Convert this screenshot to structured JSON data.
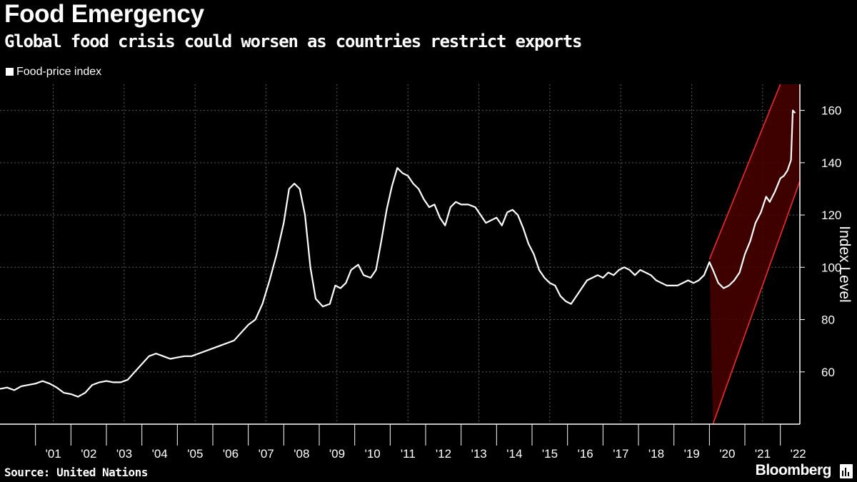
{
  "header": {
    "title": "Food Emergency",
    "subtitle": "Global food crisis could worsen as countries restrict exports"
  },
  "legend": {
    "label": "Food-price index",
    "color": "#ffffff"
  },
  "footer": {
    "source": "Source: United Nations",
    "brand": "Bloomberg"
  },
  "colors": {
    "background": "#000000",
    "line": "#ffffff",
    "grid": "#5a5a5a",
    "channel_line": "#ff2a2a",
    "channel_fill": "#4a0000"
  },
  "chart_data": {
    "type": "line",
    "title": "Food Emergency",
    "subtitle": "Global food crisis could worsen as countries restrict exports",
    "ylabel": "Index Level",
    "xlabel": "",
    "xlim": [
      2000.0,
      2022.55
    ],
    "ylim": [
      40,
      170
    ],
    "yticks": [
      60,
      80,
      100,
      120,
      140,
      160
    ],
    "ytick_labels": [
      "60",
      "80",
      "100",
      "120",
      "140",
      "160"
    ],
    "xtick_labels": [
      "'01",
      "'02",
      "'03",
      "'04",
      "'05",
      "'06",
      "'07",
      "'08",
      "'09",
      "'10",
      "'11",
      "'12",
      "'13",
      "'14",
      "'15",
      "'16",
      "'17",
      "'18",
      "'19",
      "'20",
      "'21",
      "'22"
    ],
    "xtick_positions": [
      2001,
      2002,
      2003,
      2004,
      2005,
      2006,
      2007,
      2008,
      2009,
      2010,
      2011,
      2012,
      2013,
      2014,
      2015,
      2016,
      2017,
      2018,
      2019,
      2020,
      2021,
      2022
    ],
    "grid": true,
    "legend_position": "top-left",
    "series": [
      {
        "name": "Food-price index",
        "points": [
          [
            2000.0,
            53.5
          ],
          [
            2000.2,
            54
          ],
          [
            2000.4,
            53
          ],
          [
            2000.6,
            54.5
          ],
          [
            2000.8,
            55
          ],
          [
            2001.0,
            55.5
          ],
          [
            2001.2,
            56.5
          ],
          [
            2001.4,
            55.5
          ],
          [
            2001.6,
            54
          ],
          [
            2001.8,
            52
          ],
          [
            2002.0,
            51.5
          ],
          [
            2002.2,
            50.5
          ],
          [
            2002.4,
            52
          ],
          [
            2002.6,
            55
          ],
          [
            2002.8,
            56
          ],
          [
            2003.0,
            56.5
          ],
          [
            2003.2,
            56
          ],
          [
            2003.4,
            56
          ],
          [
            2003.6,
            57
          ],
          [
            2003.8,
            60
          ],
          [
            2004.0,
            63
          ],
          [
            2004.2,
            66
          ],
          [
            2004.4,
            67
          ],
          [
            2004.6,
            66
          ],
          [
            2004.8,
            65
          ],
          [
            2005.0,
            65.5
          ],
          [
            2005.2,
            66
          ],
          [
            2005.4,
            66
          ],
          [
            2005.6,
            67
          ],
          [
            2005.8,
            68
          ],
          [
            2006.0,
            69
          ],
          [
            2006.2,
            70
          ],
          [
            2006.4,
            71
          ],
          [
            2006.6,
            72
          ],
          [
            2006.8,
            75
          ],
          [
            2007.0,
            78
          ],
          [
            2007.2,
            80
          ],
          [
            2007.4,
            86
          ],
          [
            2007.6,
            95
          ],
          [
            2007.8,
            105
          ],
          [
            2008.0,
            117
          ],
          [
            2008.15,
            130
          ],
          [
            2008.3,
            132
          ],
          [
            2008.45,
            130
          ],
          [
            2008.6,
            120
          ],
          [
            2008.75,
            100
          ],
          [
            2008.9,
            88
          ],
          [
            2009.1,
            85
          ],
          [
            2009.3,
            86
          ],
          [
            2009.45,
            93
          ],
          [
            2009.6,
            92
          ],
          [
            2009.75,
            94
          ],
          [
            2009.9,
            99
          ],
          [
            2010.1,
            101
          ],
          [
            2010.25,
            97
          ],
          [
            2010.45,
            96
          ],
          [
            2010.6,
            99
          ],
          [
            2010.75,
            110
          ],
          [
            2010.9,
            122
          ],
          [
            2011.05,
            131
          ],
          [
            2011.2,
            138
          ],
          [
            2011.35,
            136
          ],
          [
            2011.5,
            135
          ],
          [
            2011.65,
            132
          ],
          [
            2011.8,
            130
          ],
          [
            2011.95,
            126
          ],
          [
            2012.1,
            123
          ],
          [
            2012.25,
            124
          ],
          [
            2012.4,
            119
          ],
          [
            2012.55,
            116
          ],
          [
            2012.7,
            123
          ],
          [
            2012.85,
            125
          ],
          [
            2013.0,
            124
          ],
          [
            2013.2,
            124
          ],
          [
            2013.4,
            123
          ],
          [
            2013.55,
            120
          ],
          [
            2013.7,
            117
          ],
          [
            2013.85,
            118
          ],
          [
            2014.0,
            119
          ],
          [
            2014.15,
            116
          ],
          [
            2014.3,
            121
          ],
          [
            2014.45,
            122
          ],
          [
            2014.6,
            120
          ],
          [
            2014.75,
            115
          ],
          [
            2014.9,
            109
          ],
          [
            2015.05,
            105
          ],
          [
            2015.2,
            99
          ],
          [
            2015.35,
            96
          ],
          [
            2015.5,
            94
          ],
          [
            2015.65,
            93
          ],
          [
            2015.8,
            89
          ],
          [
            2015.95,
            87
          ],
          [
            2016.1,
            86
          ],
          [
            2016.25,
            89
          ],
          [
            2016.4,
            92
          ],
          [
            2016.55,
            95
          ],
          [
            2016.7,
            96
          ],
          [
            2016.85,
            97
          ],
          [
            2017.0,
            96
          ],
          [
            2017.15,
            98
          ],
          [
            2017.3,
            97
          ],
          [
            2017.45,
            99
          ],
          [
            2017.6,
            100
          ],
          [
            2017.75,
            99
          ],
          [
            2017.9,
            97
          ],
          [
            2018.05,
            99
          ],
          [
            2018.2,
            98
          ],
          [
            2018.35,
            97
          ],
          [
            2018.5,
            95
          ],
          [
            2018.65,
            94
          ],
          [
            2018.8,
            93
          ],
          [
            2018.95,
            93
          ],
          [
            2019.1,
            93
          ],
          [
            2019.25,
            94
          ],
          [
            2019.4,
            95
          ],
          [
            2019.55,
            94
          ],
          [
            2019.7,
            95
          ],
          [
            2019.85,
            97
          ],
          [
            2020.0,
            102
          ],
          [
            2020.1,
            99
          ],
          [
            2020.25,
            94
          ],
          [
            2020.4,
            92
          ],
          [
            2020.55,
            93
          ],
          [
            2020.7,
            95
          ],
          [
            2020.85,
            98
          ],
          [
            2021.0,
            105
          ],
          [
            2021.15,
            110
          ],
          [
            2021.3,
            117
          ],
          [
            2021.45,
            121
          ],
          [
            2021.6,
            127
          ],
          [
            2021.7,
            125
          ],
          [
            2021.85,
            129
          ],
          [
            2022.0,
            134
          ],
          [
            2022.1,
            135
          ],
          [
            2022.2,
            137
          ],
          [
            2022.3,
            141
          ],
          [
            2022.35,
            160
          ],
          [
            2022.42,
            159
          ]
        ]
      }
    ],
    "channel": {
      "description": "upward trend channel",
      "upper": [
        [
          2020.0,
          103
        ],
        [
          2022.0,
          170
        ]
      ],
      "lower": [
        [
          2020.1,
          40
        ],
        [
          2022.55,
          133
        ]
      ]
    }
  }
}
